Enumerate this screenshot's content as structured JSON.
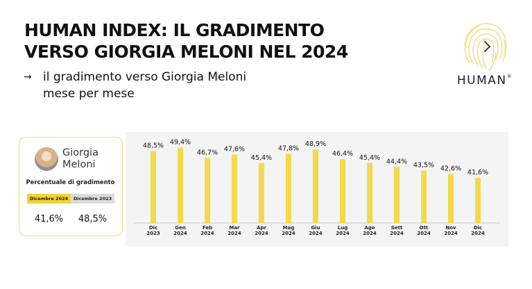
{
  "header": {
    "title_line1": "HUMAN INDEX: IL GRADIMENTO",
    "title_line2": "VERSO GIORGIA MELONI NEL 2024",
    "subtitle_arrow": "→",
    "subtitle_line1": "il gradimento verso Giorgia Meloni",
    "subtitle_line2": "mese per mese"
  },
  "logo": {
    "word": "HUMAN",
    "mark": "®",
    "icon": "fingerprint-icon",
    "color": "#f3e08a"
  },
  "card": {
    "name_line1": "Giorgia",
    "name_line2": "Meloni",
    "label": "Percentuale di gradimento",
    "tab_current": "Dicembre 2024",
    "tab_previous": "Dicembre 2023",
    "value_current": "41,6%",
    "value_previous": "48,5%",
    "accent": "#f2d336",
    "border": "#f2dc6d"
  },
  "chart_data": {
    "type": "bar",
    "categories": [
      [
        "Dic",
        "2023"
      ],
      [
        "Gen",
        "2024"
      ],
      [
        "Feb",
        "2024"
      ],
      [
        "Mar",
        "2024"
      ],
      [
        "Apr",
        "2024"
      ],
      [
        "Mag",
        "2024"
      ],
      [
        "Giu",
        "2024"
      ],
      [
        "Lug",
        "2024"
      ],
      [
        "Ago",
        "2024"
      ],
      [
        "Sett",
        "2024"
      ],
      [
        "Ott",
        "2024"
      ],
      [
        "Nov",
        "2024"
      ],
      [
        "Dic",
        "2024"
      ]
    ],
    "values": [
      48.5,
      49.4,
      46.7,
      47.6,
      45.4,
      47.8,
      48.9,
      46.4,
      45.4,
      44.4,
      43.5,
      42.6,
      41.6
    ],
    "labels": [
      "48,5%",
      "49,4%",
      "46,7%",
      "47,6%",
      "45,4%",
      "47,8%",
      "48,9%",
      "46,4%",
      "45,4%",
      "44,4%",
      "43,5%",
      "42,6%",
      "41,6%"
    ],
    "bar_color": "#f4d94a",
    "background": "#f4f4f4",
    "axis_color": "#c8c8c8",
    "ylim": [
      30,
      50
    ],
    "grid": false
  }
}
